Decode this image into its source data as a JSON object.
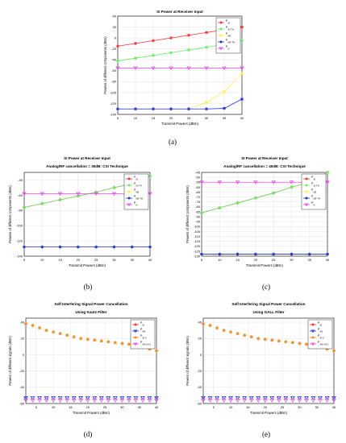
{
  "captions": [
    "(a)",
    "(b)",
    "(c)",
    "(d)",
    "(e)"
  ],
  "chart_data": [
    {
      "id": "a",
      "type": "line",
      "title": "SI Power at Receiver Input",
      "subtitle": "",
      "xlabel": "Transmit Powers (dBm)",
      "ylabel": "Powers of different components (dBm)",
      "xlim": [
        5,
        40
      ],
      "ylim": [
        -140,
        40
      ],
      "xticks": [
        5,
        10,
        15,
        20,
        25,
        30,
        35,
        40
      ],
      "yticks": [
        40,
        20,
        0,
        -20,
        -40,
        -60,
        -80,
        -100,
        -120,
        -140
      ],
      "grid": true,
      "legend_position": "top-right",
      "x": [
        5,
        10,
        15,
        20,
        25,
        30,
        35,
        40
      ],
      "series": [
        {
          "legend": "P_{SI}",
          "color": "#ff3030",
          "marker": "star",
          "values": [
            -15,
            -10,
            -5,
            0,
            5,
            10,
            15,
            20
          ]
        },
        {
          "legend": "P_{SI-TH}",
          "color": "#66ee66",
          "marker": "star",
          "values": [
            -42,
            -37,
            -32,
            -27,
            -22,
            -17,
            -12,
            -5
          ]
        },
        {
          "legend": "P_{NE}",
          "color": "#ffee44",
          "marker": "star",
          "values": [
            -130,
            -130,
            -130,
            -130,
            -130,
            -118,
            -98,
            -65
          ]
        },
        {
          "legend": "P_{NE-TH}",
          "color": "#1a2fe8",
          "marker": "star",
          "values": [
            -130,
            -130,
            -130,
            -130,
            -130,
            -130,
            -129,
            -112
          ]
        },
        {
          "legend": "P_{N}",
          "color": "#ee44ee",
          "marker": "triangle-down",
          "values": [
            -55,
            -55,
            -55,
            -55,
            -55,
            -55,
            -55,
            -55
          ]
        }
      ]
    },
    {
      "id": "b",
      "type": "line",
      "title": "SI Power at Receiver Input",
      "subtitle": "Analog/RF cancellation = 30dB: CSI Technique",
      "xlabel": "Transmit Powers (dBm)",
      "ylabel": "Powers of different components (dBm)",
      "xlim": [
        5,
        40
      ],
      "ylim": [
        -140,
        -30
      ],
      "xticks": [
        5,
        10,
        15,
        20,
        25,
        30,
        35,
        40
      ],
      "yticks": [
        -40,
        -60,
        -80,
        -100,
        -120,
        -140
      ],
      "grid": true,
      "legend_position": "top-right",
      "x": [
        5,
        10,
        15,
        20,
        25,
        30,
        35,
        40
      ],
      "series": [
        {
          "legend": "P_{SI}",
          "color": "#ff3030",
          "marker": "star",
          "values": [
            -76,
            -71,
            -66,
            -61,
            -56,
            -50,
            -45,
            -35
          ]
        },
        {
          "legend": "P_{SI-TH}",
          "color": "#66ee66",
          "marker": "star",
          "values": [
            -76,
            -71,
            -66,
            -61,
            -56,
            -50,
            -45,
            -35
          ]
        },
        {
          "legend": "P_{NE}",
          "color": "#ffee44",
          "marker": "star",
          "values": [
            -128,
            -128,
            -128,
            -128,
            -128,
            -128,
            -128,
            -128
          ]
        },
        {
          "legend": "P_{NE-TH}",
          "color": "#1a2fe8",
          "marker": "star",
          "values": [
            -128,
            -128,
            -128,
            -128,
            -128,
            -128,
            -128,
            -128
          ]
        },
        {
          "legend": "P_{N}",
          "color": "#ee44ee",
          "marker": "triangle-down",
          "values": [
            -58,
            -58,
            -58,
            -58,
            -58,
            -58,
            -58,
            -58
          ]
        }
      ]
    },
    {
      "id": "c",
      "type": "line",
      "title": "SI Power at Receiver Input",
      "subtitle": "Analog/RF cancellation = 40dB: CSI Technique",
      "xlabel": "Transmit Powers (dBm)",
      "ylabel": "Powers of different components (dBm)",
      "xlim": [
        5,
        40
      ],
      "ylim": [
        -130,
        -45
      ],
      "xticks": [
        5,
        10,
        15,
        20,
        25,
        30,
        35,
        40
      ],
      "yticks": [
        -45,
        -50,
        -55,
        -60,
        -65,
        -70,
        -75,
        -80,
        -85,
        -90,
        -95,
        -100,
        -105,
        -110,
        -115,
        -120,
        -125,
        -130
      ],
      "grid": true,
      "legend_position": "top-right",
      "x": [
        5,
        10,
        15,
        20,
        25,
        30,
        35,
        40
      ],
      "series": [
        {
          "legend": "P_{SI}",
          "color": "#ff3030",
          "marker": "star",
          "values": [
            -86,
            -81,
            -76,
            -71,
            -66,
            -60,
            -55,
            -45
          ]
        },
        {
          "legend": "P_{SI-TH}",
          "color": "#66ee66",
          "marker": "star",
          "values": [
            -86,
            -81,
            -76,
            -71,
            -66,
            -60,
            -55,
            -45
          ]
        },
        {
          "legend": "P_{NE}",
          "color": "#ffee44",
          "marker": "star",
          "values": [
            -128,
            -128,
            -128,
            -128,
            -128,
            -128,
            -128,
            -128
          ]
        },
        {
          "legend": "P_{NE-TH}",
          "color": "#1a2fe8",
          "marker": "star",
          "values": [
            -128,
            -128,
            -128,
            -128,
            -128,
            -128,
            -128,
            -128
          ]
        },
        {
          "legend": "P_{N}",
          "color": "#ee44ee",
          "marker": "triangle-down",
          "values": [
            -55,
            -55,
            -55,
            -55,
            -55,
            -55,
            -55,
            -55
          ]
        }
      ]
    },
    {
      "id": "d",
      "type": "scatter",
      "title": "Self Interfering Signal Power Cancellation",
      "subtitle": "Using Kautz Filter",
      "xlabel": "Transmit Powers (dBm)",
      "ylabel": "Powers of different signals (dBm)",
      "xlim": [
        2,
        40
      ],
      "ylim": [
        -60,
        45
      ],
      "xticks": [
        5,
        10,
        15,
        20,
        25,
        30,
        35,
        40
      ],
      "yticks": [
        40,
        20,
        0,
        -20,
        -40,
        -60
      ],
      "grid": true,
      "legend_position": "top-right",
      "x": [
        2,
        4,
        6,
        8,
        10,
        12,
        14,
        16,
        18,
        20,
        22,
        24,
        26,
        28,
        30,
        32,
        34,
        36,
        38,
        40
      ],
      "series": [
        {
          "legend": "P_{SI}",
          "color": "#ff3030",
          "marker": "star",
          "values": []
        },
        {
          "legend": "P_{AN}",
          "color": "#1a2fe8",
          "marker": "triangle-down",
          "values": [
            -53,
            -53,
            -53,
            -53,
            -53,
            -53,
            -53,
            -53,
            -53,
            -53,
            -53,
            -53,
            -53,
            -53,
            -53,
            -53,
            -53,
            -53,
            -53,
            -53
          ]
        },
        {
          "legend": "P_{SI-C}",
          "color": "#f08a1a",
          "marker": "star",
          "values": [
            38,
            36,
            33,
            30,
            28,
            26,
            24,
            22,
            20,
            19,
            18,
            17,
            16,
            15,
            14,
            13,
            11,
            9,
            7,
            5
          ]
        },
        {
          "legend": "P_{AN+SI-C}",
          "color": "#ee44ee",
          "marker": "triangle-down",
          "values": [
            -56,
            -56,
            -56,
            -56,
            -56,
            -56,
            -56,
            -56,
            -56,
            -56,
            -56,
            -56,
            -56,
            -56,
            -56,
            -56,
            -56,
            -56,
            -56,
            -56
          ]
        }
      ]
    },
    {
      "id": "e",
      "type": "scatter",
      "title": "Self Interfering Signal Power Cancellation",
      "subtitle": "Using GALL Filter",
      "xlabel": "Transmit Powers (dBm)",
      "ylabel": "Powers of different signals (dBm)",
      "xlim": [
        2,
        40
      ],
      "ylim": [
        -60,
        45
      ],
      "xticks": [
        5,
        10,
        15,
        20,
        25,
        30,
        35,
        40
      ],
      "yticks": [
        40,
        20,
        0,
        -20,
        -40,
        -60
      ],
      "grid": true,
      "legend_position": "top-right",
      "x": [
        2,
        4,
        6,
        8,
        10,
        12,
        14,
        16,
        18,
        20,
        22,
        24,
        26,
        28,
        30,
        32,
        34,
        36,
        38,
        40
      ],
      "series": [
        {
          "legend": "P_{SI}",
          "color": "#ff3030",
          "marker": "star",
          "values": []
        },
        {
          "legend": "P_{AN}",
          "color": "#1a2fe8",
          "marker": "triangle-down",
          "values": [
            -53,
            -53,
            -53,
            -53,
            -53,
            -53,
            -53,
            -53,
            -53,
            -53,
            -53,
            -53,
            -53,
            -53,
            -53,
            -53,
            -53,
            -53,
            -53,
            -53
          ]
        },
        {
          "legend": "P_{SI-C}",
          "color": "#f08a1a",
          "marker": "star",
          "values": [
            38,
            36,
            33,
            30,
            28,
            26,
            24,
            22,
            20,
            19,
            18,
            17,
            16,
            15,
            14,
            13,
            11,
            9,
            7,
            5
          ]
        },
        {
          "legend": "P_{AN+SI-C}",
          "color": "#ee44ee",
          "marker": "triangle-down",
          "values": [
            -56,
            -56,
            -56,
            -56,
            -56,
            -56,
            -56,
            -56,
            -56,
            -56,
            -56,
            -56,
            -56,
            -56,
            -56,
            -56,
            -56,
            -56,
            -56,
            -56
          ]
        }
      ]
    }
  ]
}
